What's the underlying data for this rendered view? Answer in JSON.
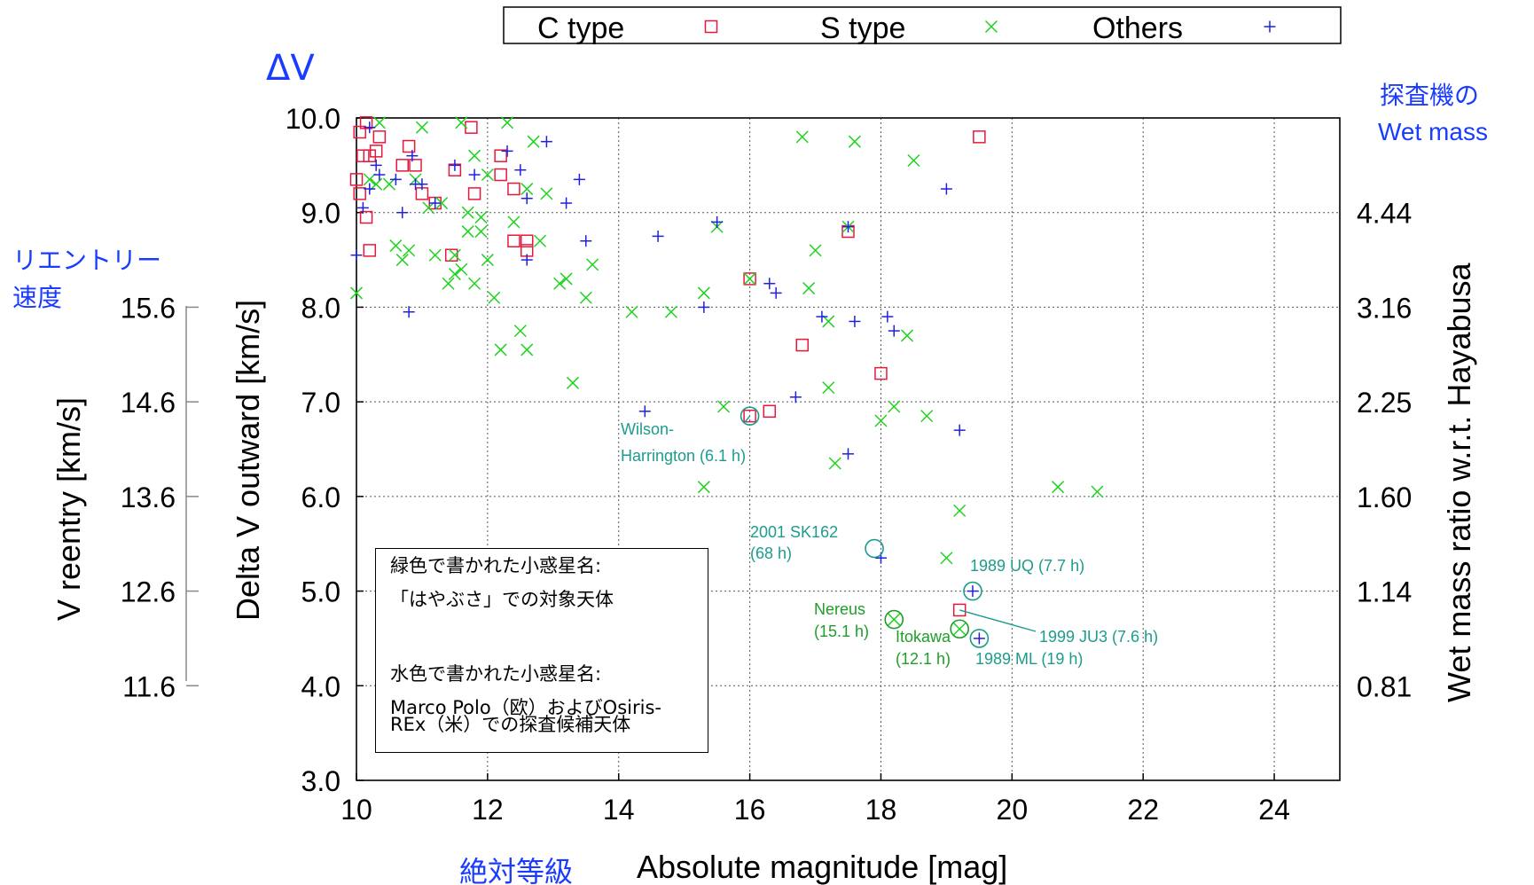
{
  "chart_data": {
    "type": "scatter",
    "title": "",
    "xlabel": "Absolute magnitude [mag]",
    "xlabel_ja": "絶対等級",
    "ylabel": "Delta V outward [km/s]",
    "ylabel_ja": "ΔV",
    "ylabel_left2": "V reentry [km/s]",
    "ylabel_left2_ja": [
      "リエントリー",
      "速度"
    ],
    "ylabel_right": "Wet mass ratio w.r.t. Hayabusa",
    "ylabel_right_ja": [
      "探査機の",
      "Wet mass"
    ],
    "xlim": [
      10,
      25
    ],
    "ylim": [
      3,
      10
    ],
    "xticks": [
      "10",
      "12",
      "14",
      "16",
      "18",
      "20",
      "22",
      "24"
    ],
    "xtick_values": [
      10,
      12,
      14,
      16,
      18,
      20,
      22,
      24
    ],
    "yticks": [
      "3.0",
      "4.0",
      "5.0",
      "6.0",
      "7.0",
      "8.0",
      "9.0",
      "10.0"
    ],
    "ytick_values": [
      3,
      4,
      5,
      6,
      7,
      8,
      9,
      10
    ],
    "reentry_ticks": [
      "11.6",
      "12.6",
      "13.6",
      "14.6",
      "15.6"
    ],
    "reentry_tick_dv": [
      4,
      5,
      6,
      7,
      8
    ],
    "wetmass_ticks": [
      "0.81",
      "1.14",
      "1.60",
      "2.25",
      "3.16",
      "4.44"
    ],
    "wetmass_tick_dv": [
      4,
      5,
      6,
      7,
      8,
      9
    ],
    "grid": true,
    "legend_position": "top",
    "series": [
      {
        "name": "C type",
        "marker": "square",
        "color": "#e8183c",
        "points": [
          [
            10.1,
            9.6
          ],
          [
            10.2,
            9.6
          ],
          [
            10.3,
            9.65
          ],
          [
            10.05,
            9.85
          ],
          [
            10.15,
            9.95
          ],
          [
            10.35,
            9.8
          ],
          [
            10.7,
            9.5
          ],
          [
            10.9,
            9.5
          ],
          [
            10.8,
            9.7
          ],
          [
            10.0,
            9.35
          ],
          [
            10.05,
            9.2
          ],
          [
            10.15,
            8.95
          ],
          [
            10.2,
            8.6
          ],
          [
            11.0,
            9.2
          ],
          [
            11.2,
            9.1
          ],
          [
            11.45,
            8.55
          ],
          [
            11.5,
            9.45
          ],
          [
            11.75,
            9.9
          ],
          [
            11.8,
            9.2
          ],
          [
            12.2,
            9.4
          ],
          [
            12.2,
            9.6
          ],
          [
            12.4,
            9.25
          ],
          [
            12.4,
            8.7
          ],
          [
            12.6,
            8.7
          ],
          [
            12.6,
            8.6
          ],
          [
            16.0,
            8.3
          ],
          [
            16.0,
            6.85
          ],
          [
            16.3,
            6.9
          ],
          [
            16.8,
            7.6
          ],
          [
            17.5,
            8.8
          ],
          [
            18.0,
            7.3
          ],
          [
            19.2,
            4.8
          ],
          [
            19.5,
            9.8
          ]
        ]
      },
      {
        "name": "S type",
        "marker": "x",
        "color": "#1ed31e",
        "points": [
          [
            10.0,
            8.15
          ],
          [
            10.2,
            9.35
          ],
          [
            10.3,
            9.3
          ],
          [
            10.35,
            9.95
          ],
          [
            10.5,
            9.3
          ],
          [
            10.6,
            8.65
          ],
          [
            10.7,
            8.5
          ],
          [
            10.8,
            8.6
          ],
          [
            10.9,
            9.35
          ],
          [
            11.0,
            9.9
          ],
          [
            11.1,
            9.05
          ],
          [
            11.2,
            8.55
          ],
          [
            11.3,
            9.1
          ],
          [
            11.4,
            8.25
          ],
          [
            11.5,
            8.35
          ],
          [
            11.5,
            8.55
          ],
          [
            11.6,
            8.4
          ],
          [
            11.6,
            9.95
          ],
          [
            11.7,
            9.0
          ],
          [
            11.7,
            8.8
          ],
          [
            11.8,
            8.25
          ],
          [
            11.8,
            9.6
          ],
          [
            11.9,
            8.8
          ],
          [
            11.9,
            8.95
          ],
          [
            12.0,
            8.5
          ],
          [
            12.0,
            9.4
          ],
          [
            12.1,
            8.1
          ],
          [
            12.2,
            7.55
          ],
          [
            12.3,
            9.95
          ],
          [
            12.4,
            8.9
          ],
          [
            12.5,
            7.75
          ],
          [
            12.6,
            7.55
          ],
          [
            12.6,
            9.25
          ],
          [
            12.7,
            9.75
          ],
          [
            12.8,
            8.7
          ],
          [
            12.9,
            9.2
          ],
          [
            13.1,
            8.25
          ],
          [
            13.2,
            8.3
          ],
          [
            13.3,
            7.2
          ],
          [
            13.5,
            8.1
          ],
          [
            13.6,
            8.45
          ],
          [
            14.2,
            7.95
          ],
          [
            14.8,
            7.95
          ],
          [
            15.3,
            8.15
          ],
          [
            15.3,
            6.1
          ],
          [
            15.5,
            8.85
          ],
          [
            15.6,
            6.95
          ],
          [
            16.0,
            8.3
          ],
          [
            16.8,
            9.8
          ],
          [
            16.9,
            8.2
          ],
          [
            17.0,
            8.6
          ],
          [
            17.2,
            7.15
          ],
          [
            17.2,
            7.85
          ],
          [
            17.3,
            6.35
          ],
          [
            17.5,
            8.85
          ],
          [
            17.6,
            9.75
          ],
          [
            18.0,
            6.8
          ],
          [
            18.2,
            6.95
          ],
          [
            18.4,
            7.7
          ],
          [
            18.5,
            9.55
          ],
          [
            18.7,
            6.85
          ],
          [
            19.0,
            5.35
          ],
          [
            19.2,
            5.85
          ],
          [
            20.7,
            6.1
          ],
          [
            21.3,
            6.05
          ],
          [
            18.2,
            4.7
          ],
          [
            19.2,
            4.6
          ]
        ]
      },
      {
        "name": "Others",
        "marker": "plus",
        "color": "#2020e0",
        "points": [
          [
            10.0,
            8.55
          ],
          [
            10.1,
            9.05
          ],
          [
            10.2,
            9.9
          ],
          [
            10.2,
            9.25
          ],
          [
            10.3,
            9.5
          ],
          [
            10.35,
            9.4
          ],
          [
            10.6,
            9.35
          ],
          [
            10.7,
            9.0
          ],
          [
            10.8,
            7.95
          ],
          [
            10.85,
            9.6
          ],
          [
            10.9,
            9.3
          ],
          [
            11.0,
            9.3
          ],
          [
            11.2,
            9.1
          ],
          [
            11.5,
            9.5
          ],
          [
            11.8,
            9.4
          ],
          [
            12.3,
            9.65
          ],
          [
            12.5,
            9.45
          ],
          [
            12.6,
            9.15
          ],
          [
            12.6,
            8.5
          ],
          [
            12.9,
            9.75
          ],
          [
            13.2,
            9.1
          ],
          [
            13.4,
            9.35
          ],
          [
            13.5,
            8.7
          ],
          [
            14.4,
            6.9
          ],
          [
            14.6,
            8.75
          ],
          [
            15.3,
            8.0
          ],
          [
            15.5,
            8.9
          ],
          [
            16.3,
            8.25
          ],
          [
            16.4,
            8.15
          ],
          [
            16.7,
            7.05
          ],
          [
            17.1,
            7.9
          ],
          [
            17.5,
            6.45
          ],
          [
            17.5,
            8.85
          ],
          [
            17.6,
            7.85
          ],
          [
            18.1,
            7.9
          ],
          [
            18.2,
            7.75
          ],
          [
            19.0,
            9.25
          ],
          [
            19.2,
            6.7
          ],
          [
            18.0,
            5.35
          ],
          [
            19.4,
            5.0
          ],
          [
            19.5,
            4.5
          ]
        ]
      }
    ],
    "annotations": [
      {
        "text": [
          "Wilson-",
          "Harrington (6.1 h)"
        ],
        "x": 16.0,
        "y": 6.85,
        "color": "#1c9c8c"
      },
      {
        "text": [
          "2001 SK162",
          "(68 h)"
        ],
        "x": 17.9,
        "y": 5.45,
        "color": "#1c9c8c"
      },
      {
        "text": [
          "1989 UQ (7.7 h)"
        ],
        "x": 19.4,
        "y": 5.0,
        "color": "#1c9c8c"
      },
      {
        "text": [
          "1999 JU3 (7.6 h)"
        ],
        "x": 19.2,
        "y": 4.8,
        "color": "#1c9c8c"
      },
      {
        "text": [
          "1989 ML (19 h)"
        ],
        "x": 19.5,
        "y": 4.5,
        "color": "#1c9c8c"
      },
      {
        "text": [
          "Nereus",
          "(15.1 h)"
        ],
        "x": 18.2,
        "y": 4.7,
        "color": "#1e9e2a"
      },
      {
        "text": [
          "Itokawa",
          "(12.1 h)"
        ],
        "x": 19.2,
        "y": 4.6,
        "color": "#1e9e2a"
      }
    ]
  },
  "legend": {
    "items": [
      {
        "label": "C type",
        "marker": "square"
      },
      {
        "label": "S type",
        "marker": "x"
      },
      {
        "label": "Others",
        "marker": "plus"
      }
    ]
  },
  "note": {
    "line1": "緑色で書かれた小惑星名:",
    "line2": "「はやぶさ」での対象天体",
    "line3": "水色で書かれた小惑星名:",
    "line4": "Marco Polo（欧）およびOsiris-",
    "line5": "REx（米）での探査候補天体"
  },
  "colors": {
    "c_type": "#e8183c",
    "s_type": "#1ed31e",
    "others": "#2020e0",
    "cyan_label": "#1c9c8c",
    "green_label": "#1e9e2a",
    "ja_label": "#1a3cff"
  }
}
